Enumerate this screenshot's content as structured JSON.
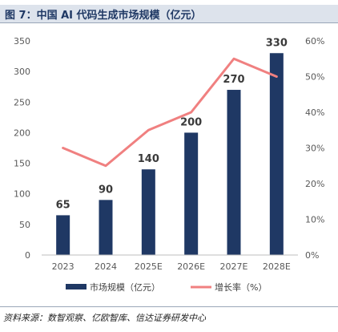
{
  "figure_title": "图 7：中国 AI 代码生成市场规模（亿元）",
  "source": "资料来源：数智观察、亿欧智库、信达证券研发中心",
  "colors": {
    "bar": "#1f3864",
    "line": "#f08080",
    "title_bg": "#dde3ec"
  },
  "chart_data": {
    "type": "bar",
    "categories": [
      "2023",
      "2024",
      "2025E",
      "2026E",
      "2027E",
      "2028E"
    ],
    "series": [
      {
        "name": "市场规模（亿元）",
        "type": "bar",
        "axis": "left",
        "values": [
          65,
          90,
          140,
          200,
          270,
          330
        ],
        "data_labels": [
          "65",
          "90",
          "140",
          "200",
          "270",
          "330"
        ]
      },
      {
        "name": "增长率（%）",
        "type": "line",
        "axis": "right",
        "values": [
          30,
          25,
          35,
          40,
          55,
          50
        ]
      }
    ],
    "ylim_left": [
      0,
      350
    ],
    "yticks_left": [
      "0",
      "50",
      "100",
      "150",
      "200",
      "250",
      "300",
      "350"
    ],
    "ylim_right": [
      0,
      60
    ],
    "yticks_right": [
      "0%",
      "10%",
      "20%",
      "30%",
      "40%",
      "50%",
      "60%"
    ],
    "legend_position": "bottom",
    "grid": false
  }
}
